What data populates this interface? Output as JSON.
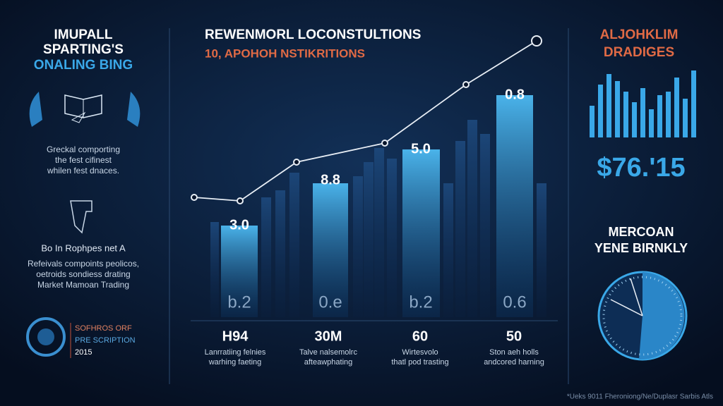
{
  "left": {
    "title": [
      "IMUPALL",
      "SPARTING'S",
      "ONALING BING"
    ],
    "caption": [
      "Greckal comporting",
      "the fest cifinest",
      "whilen fest dnaces."
    ],
    "heading": "Bo In Rophpes net A",
    "text": [
      "Refeivals compoints peolicos,",
      "oetroids sondiess drating",
      "Market Mamoan Trading"
    ],
    "logo": [
      "SOFHROS ORF",
      "PRE SCRIPTION",
      "2015"
    ]
  },
  "center": {
    "title": "REWENMORL LOCONSTULTIONS",
    "subtitle": "10, APOHOH NSTIKRITIONS",
    "bar_labels": [
      "3.0",
      "8.8",
      "5.0",
      "0.8"
    ],
    "bottom_labels": [
      "b.2",
      "0.e",
      "b.2",
      "0.6"
    ],
    "stats": [
      "H94",
      "30M",
      "60",
      "50"
    ],
    "descriptions": [
      [
        "Lanrratiing felnies",
        "warhing faeting"
      ],
      [
        "Talve nalsemolrc",
        "afteawphating"
      ],
      [
        "Wirtesvolo",
        "thatl pod trasting"
      ],
      [
        "Ston aeh holls",
        "andcored harning"
      ]
    ]
  },
  "right": {
    "title": [
      "ALJOHKLIM",
      "DRADIGES"
    ],
    "amount": "$76.'15",
    "subtitle": [
      "MERCOAN",
      "YENE BIRNKLY"
    ]
  },
  "footer": "*Ueks 9011 Fheroniong/Ne/Duplasr Sarbis Atls"
}
